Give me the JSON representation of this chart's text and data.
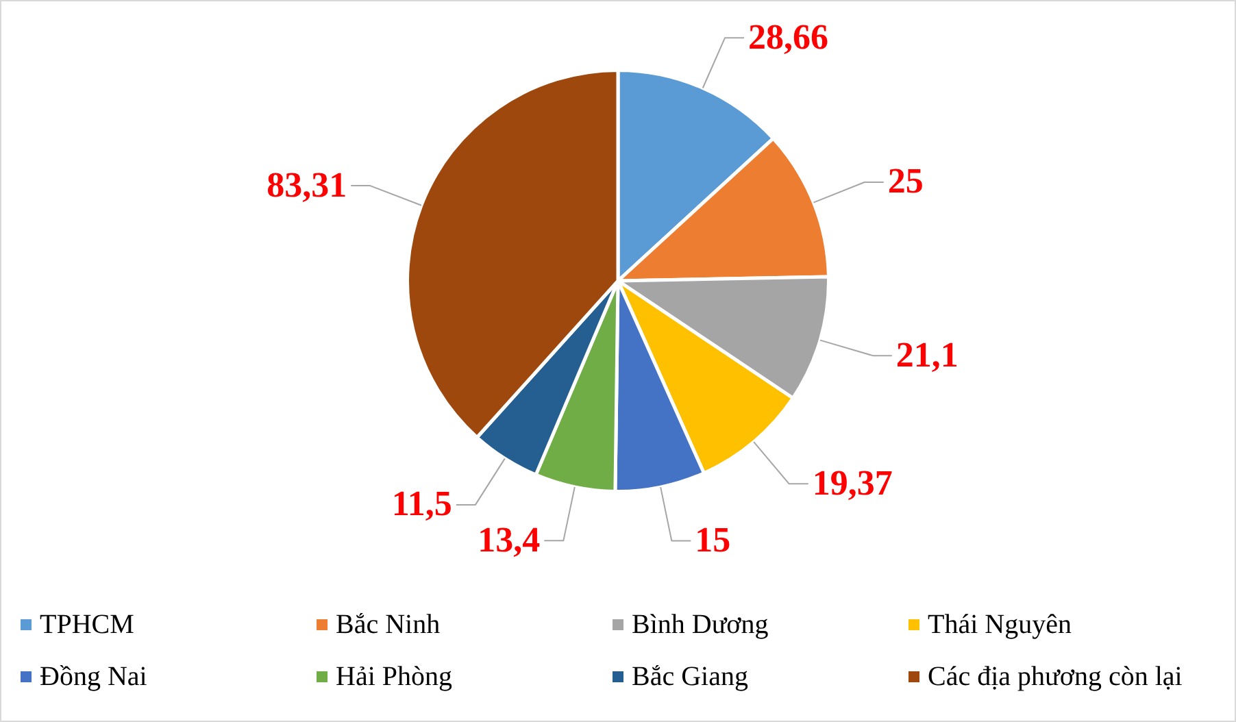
{
  "chart_data": {
    "type": "pie",
    "categories": [
      "TPHCM",
      "Bắc Ninh",
      "Bình Dương",
      "Thái Nguyên",
      "Đồng Nai",
      "Hải Phòng",
      "Bắc Giang",
      "Các địa phương còn lại"
    ],
    "values": [
      28.66,
      25,
      21.1,
      19.37,
      15,
      13.4,
      11.5,
      83.31
    ],
    "colors": [
      "#5b9bd5",
      "#ed7d31",
      "#a5a5a5",
      "#ffc000",
      "#4472c4",
      "#70ad47",
      "#255e91",
      "#9e480e"
    ],
    "value_labels": [
      "28,66",
      "25",
      "21,1",
      "19,37",
      "15",
      "13,4",
      "11,5",
      "83,31"
    ],
    "legend": "bottom"
  }
}
